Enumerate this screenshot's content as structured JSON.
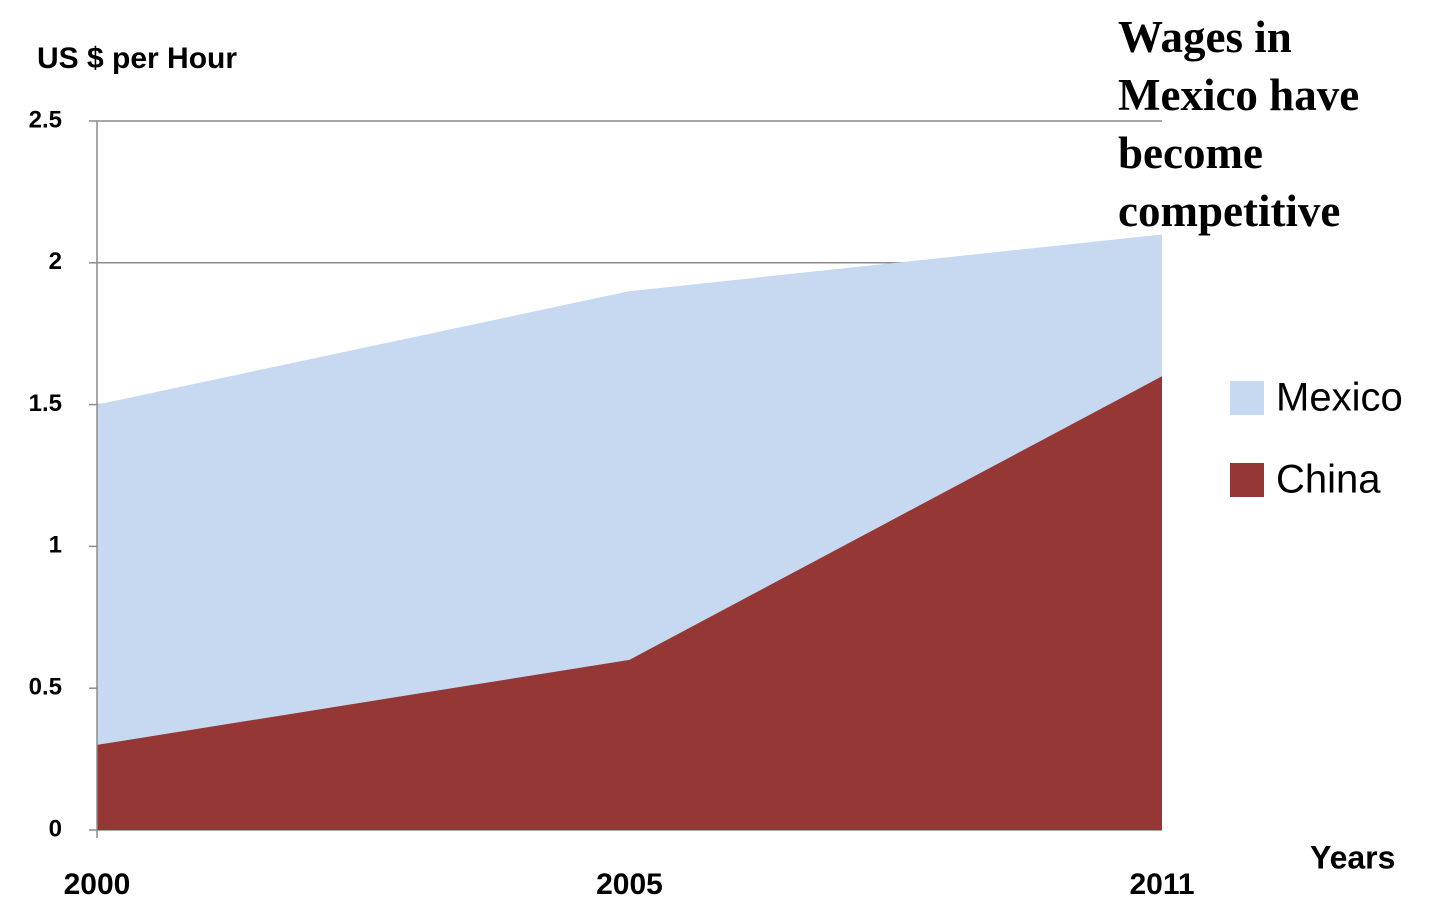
{
  "chart_data": {
    "type": "area",
    "title": "Wages in Mexico have become competitive",
    "y_label": "US $ per Hour",
    "x_label": "Years",
    "categories": [
      "2000",
      "2005",
      "2011"
    ],
    "series": [
      {
        "name": "Mexico",
        "color": "#c6d9f1",
        "values": [
          1.5,
          1.9,
          2.1
        ]
      },
      {
        "name": "China",
        "color": "#953735",
        "values": [
          0.3,
          0.6,
          1.6
        ]
      }
    ],
    "ylim": [
      0,
      2.5
    ],
    "yticks": [
      0,
      0.5,
      1,
      1.5,
      2,
      2.5
    ],
    "grid": true,
    "legend": "right"
  }
}
